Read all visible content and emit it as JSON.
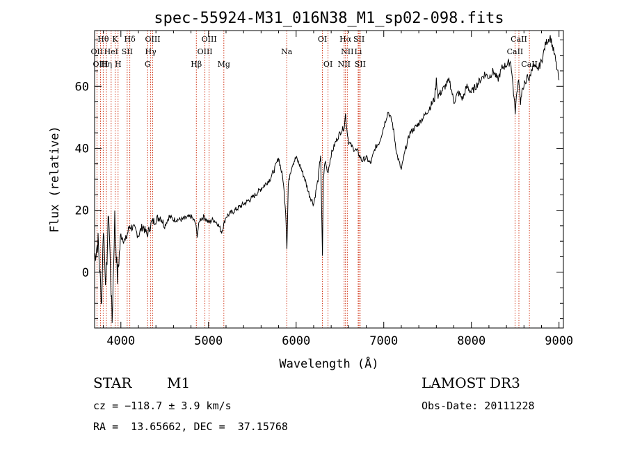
{
  "chart_data": {
    "type": "line",
    "title": "spec-55924-M31_016N38_M1_sp02-098.fits",
    "xlabel": "Wavelength (Å)",
    "ylabel": "Flux (relative)",
    "xlim": [
      3700,
      9050
    ],
    "ylim": [
      -18,
      78
    ],
    "x_ticks": [
      4000,
      5000,
      6000,
      7000,
      8000,
      9000
    ],
    "x_tick_labels": [
      "4000",
      "5000",
      "6000",
      "7000",
      "8000",
      "9000"
    ],
    "y_ticks": [
      0,
      20,
      40,
      60
    ],
    "y_tick_labels": [
      "0",
      "20",
      "40",
      "60"
    ],
    "series": [
      {
        "name": "spectrum",
        "x": [
          3700,
          3740,
          3780,
          3800,
          3830,
          3860,
          3900,
          3930,
          3960,
          4000,
          4050,
          4100,
          4150,
          4200,
          4250,
          4300,
          4350,
          4400,
          4450,
          4500,
          4550,
          4600,
          4700,
          4800,
          4850,
          4870,
          4900,
          4950,
          5000,
          5050,
          5100,
          5150,
          5180,
          5200,
          5250,
          5300,
          5400,
          5500,
          5600,
          5700,
          5750,
          5800,
          5850,
          5880,
          5895,
          5910,
          5930,
          5960,
          6000,
          6050,
          6100,
          6150,
          6200,
          6250,
          6280,
          6300,
          6310,
          6330,
          6360,
          6400,
          6450,
          6500,
          6550,
          6563,
          6580,
          6600,
          6650,
          6700,
          6750,
          6800,
          6850,
          6900,
          6950,
          7000,
          7050,
          7100,
          7150,
          7200,
          7250,
          7300,
          7400,
          7500,
          7580,
          7600,
          7620,
          7650,
          7700,
          7750,
          7800,
          7850,
          7900,
          7950,
          8000,
          8050,
          8100,
          8150,
          8200,
          8250,
          8300,
          8350,
          8400,
          8450,
          8500,
          8520,
          8540,
          8560,
          8600,
          8620,
          8640,
          8660,
          8700,
          8750,
          8800,
          8850,
          8900,
          8950,
          9000
        ],
        "y": [
          5,
          10,
          -10,
          15,
          -5,
          20,
          -16,
          18,
          -2,
          12,
          10,
          15,
          14,
          12,
          15,
          12,
          16,
          17,
          18,
          15,
          18,
          17,
          17,
          18,
          16,
          12,
          17,
          18,
          16,
          17,
          16,
          13,
          16,
          18,
          19,
          20,
          22,
          24,
          27,
          30,
          33,
          37,
          30,
          20,
          8,
          28,
          32,
          35,
          37,
          34,
          30,
          25,
          22,
          30,
          38,
          5,
          30,
          36,
          32,
          38,
          42,
          45,
          47,
          51,
          46,
          42,
          40,
          39,
          36,
          37,
          35,
          40,
          42,
          47,
          52,
          48,
          38,
          33,
          40,
          45,
          48,
          52,
          56,
          62,
          57,
          58,
          60,
          62,
          55,
          58,
          56,
          60,
          58,
          60,
          62,
          64,
          63,
          65,
          62,
          66,
          67,
          68,
          52,
          58,
          63,
          55,
          61,
          60,
          64,
          62,
          67,
          65,
          68,
          74,
          76,
          70,
          62
        ]
      }
    ],
    "line_markers": [
      {
        "label": "Hθ",
        "x": 3798,
        "row": 1
      },
      {
        "label": "K",
        "x": 3934,
        "row": 1
      },
      {
        "label": "Hδ",
        "x": 4102,
        "row": 1
      },
      {
        "label": "OIII",
        "x": 4363,
        "row": 1
      },
      {
        "label": "OIII",
        "x": 5007,
        "row": 1
      },
      {
        "label": "OI",
        "x": 6300,
        "row": 1
      },
      {
        "label": "Hα",
        "x": 6563,
        "row": 1
      },
      {
        "label": "SII",
        "x": 6717,
        "row": 1
      },
      {
        "label": "CaII",
        "x": 8542,
        "row": 1
      },
      {
        "label": "OII",
        "x": 3727,
        "row": 2
      },
      {
        "label": "HeI",
        "x": 3889,
        "row": 2
      },
      {
        "label": "SII",
        "x": 4072,
        "row": 2
      },
      {
        "label": "Hγ",
        "x": 4340,
        "row": 2
      },
      {
        "label": "OIII",
        "x": 4959,
        "row": 2
      },
      {
        "label": "Na",
        "x": 5893,
        "row": 2
      },
      {
        "label": "NII",
        "x": 6584,
        "row": 2
      },
      {
        "label": "Li",
        "x": 6708,
        "row": 2
      },
      {
        "label": "CaII",
        "x": 8498,
        "row": 2
      },
      {
        "label": "OIII",
        "x": 3768,
        "row": 3
      },
      {
        "label": "Hη",
        "x": 3835,
        "row": 3
      },
      {
        "label": "H",
        "x": 3968,
        "row": 3
      },
      {
        "label": "G",
        "x": 4305,
        "row": 3
      },
      {
        "label": "Hβ",
        "x": 4861,
        "row": 3
      },
      {
        "label": "Mg",
        "x": 5175,
        "row": 3
      },
      {
        "label": "OI",
        "x": 6364,
        "row": 3
      },
      {
        "label": "NII",
        "x": 6548,
        "row": 3
      },
      {
        "label": "SII",
        "x": 6731,
        "row": 3
      },
      {
        "label": "CaII",
        "x": 8662,
        "row": 3
      }
    ],
    "grid": false,
    "line_color": "#000000",
    "marker_color": "#cc2200"
  },
  "info": {
    "object_type": "STAR",
    "subclass": "M1",
    "survey": "LAMOST DR3",
    "cz": "cz = −118.7 ± 3.9 km/s",
    "obs_date": "Obs-Date: 20111228",
    "coords": "RA =  13.65662, DEC =  37.15768"
  }
}
